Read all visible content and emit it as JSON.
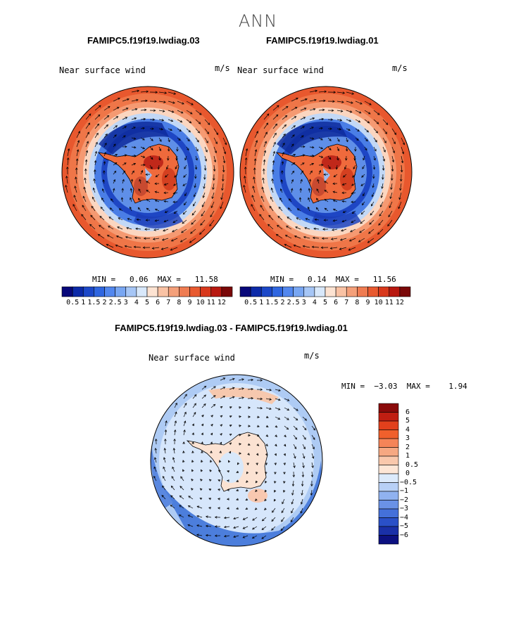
{
  "season": "ANN",
  "panels": [
    {
      "title": "FAMIPC5.f19f19.lwdiag.03",
      "variable": "Near surface wind",
      "units": "m/s",
      "stats": "MIN =   0.06  MAX =   11.58"
    },
    {
      "title": "FAMIPC5.f19f19.lwdiag.01",
      "variable": "Near surface wind",
      "units": "m/s",
      "stats": "MIN =   0.14  MAX =   11.56"
    }
  ],
  "diff": {
    "title": "FAMIPC5.f19f19.lwdiag.03 - FAMIPC5.f19f19.lwdiag.01",
    "variable": "Near surface wind",
    "units": "m/s",
    "stats": "MIN =  −3.03  MAX =    1.94"
  },
  "colorbar_abs": {
    "labels": [
      "0.5",
      "1",
      "1.5",
      "2",
      "2.5",
      "3",
      "4",
      "5",
      "6",
      "7",
      "8",
      "9",
      "10",
      "11",
      "12"
    ],
    "colors": [
      "#08087a",
      "#0c2aa8",
      "#1c48c8",
      "#2f66e0",
      "#5287ee",
      "#78a6f2",
      "#a6c6f6",
      "#d8e8fb",
      "#fde3d2",
      "#f9c2a4",
      "#f4a07a",
      "#ef7c52",
      "#e85a30",
      "#d8381c",
      "#b81810",
      "#7a0808"
    ]
  },
  "colorbar_diff": {
    "labels": [
      "6",
      "5",
      "4",
      "3",
      "2",
      "1",
      "0.5",
      "0",
      "−0.5",
      "−1",
      "−2",
      "−3",
      "−4",
      "−5",
      "−6"
    ],
    "colors": [
      "#8a0a0a",
      "#c01e12",
      "#e2401c",
      "#f0602c",
      "#f48458",
      "#f6a882",
      "#f9c8ac",
      "#fde6d6",
      "#dceafb",
      "#b8d0f6",
      "#90b2f0",
      "#6a92e6",
      "#4470da",
      "#2a50c8",
      "#1a30a8",
      "#0c1080"
    ]
  }
}
